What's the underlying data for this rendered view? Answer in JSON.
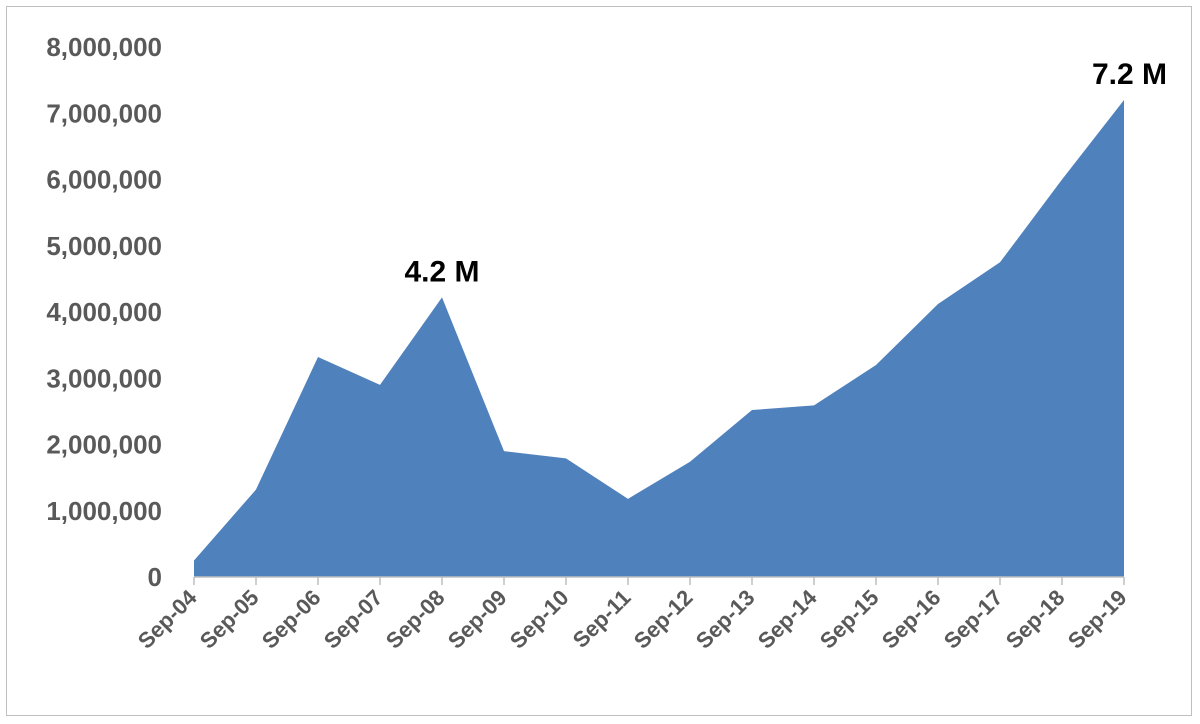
{
  "chart_data": {
    "type": "area",
    "title": "",
    "xlabel": "",
    "ylabel": "",
    "categories": [
      "Sep-04",
      "Sep-05",
      "Sep-06",
      "Sep-07",
      "Sep-08",
      "Sep-09",
      "Sep-10",
      "Sep-11",
      "Sep-12",
      "Sep-13",
      "Sep-14",
      "Sep-15",
      "Sep-16",
      "Sep-17",
      "Sep-18",
      "Sep-19"
    ],
    "values": [
      250000,
      1320000,
      3320000,
      2900000,
      4220000,
      1900000,
      1790000,
      1180000,
      1740000,
      2520000,
      2590000,
      3200000,
      4120000,
      4750000,
      6000000,
      7200000
    ],
    "ylim": [
      0,
      8000000
    ],
    "yticks": [
      "0",
      "1,000,000",
      "2,000,000",
      "3,000,000",
      "4,000,000",
      "5,000,000",
      "6,000,000",
      "7,000,000",
      "8,000,000"
    ],
    "ytick_values": [
      0,
      1000000,
      2000000,
      3000000,
      4000000,
      5000000,
      6000000,
      7000000,
      8000000
    ],
    "grid": false,
    "legend": "none",
    "fill_color": "#4f81bd",
    "annotations": [
      {
        "text": "4.2 M",
        "category": "Sep-08",
        "value": 4220000
      },
      {
        "text": "7.2 M",
        "category": "Sep-19",
        "value": 7200000
      }
    ]
  }
}
